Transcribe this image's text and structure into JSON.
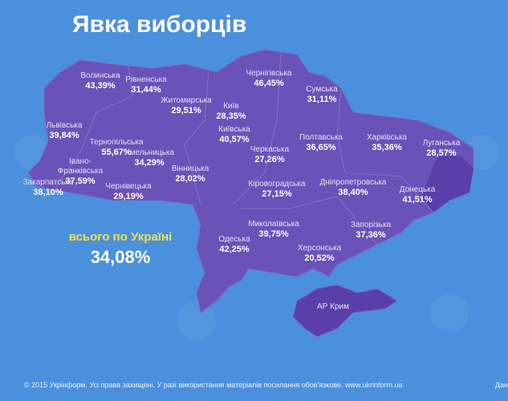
{
  "header": {
    "title": "Явка виборців"
  },
  "regions": [
    {
      "name": "Волинська",
      "turnout": "43,39%"
    },
    {
      "name": "Рівненська",
      "turnout": "31,44%"
    },
    {
      "name": "Чернігівська",
      "turnout": "46,45%"
    },
    {
      "name": "Сумська",
      "turnout": "31,11%"
    },
    {
      "name": "Житомирська",
      "turnout": "29,51%"
    },
    {
      "name": "Київ",
      "turnout": "28,35%"
    },
    {
      "name": "Львівська",
      "turnout": "39,84%"
    },
    {
      "name": "Київська",
      "turnout": "40,57%"
    },
    {
      "name": "Полтавська",
      "turnout": "36,65%"
    },
    {
      "name": "Харківська",
      "turnout": "35,36%"
    },
    {
      "name": "Тернопільська",
      "turnout": "55,67%"
    },
    {
      "name": "Хмельницька",
      "turnout": "34,29%"
    },
    {
      "name": "Черкаська",
      "turnout": "27,26%"
    },
    {
      "name": "Луганська",
      "turnout": "28,57%"
    },
    {
      "name": "Вінницька",
      "turnout": "28,02%"
    },
    {
      "name": "Івано- Франківська",
      "turnout": "37,59%"
    },
    {
      "name": "Закарпатська",
      "turnout": "38,10%"
    },
    {
      "name": "Чернівецька",
      "turnout": "29,19%"
    },
    {
      "name": "Кіровоградська",
      "turnout": "27,15%"
    },
    {
      "name": "Дніпропетровська",
      "turnout": "38,40%"
    },
    {
      "name": "Донецька",
      "turnout": "41,51%"
    },
    {
      "name": "Миколаївська",
      "turnout": "39,75%"
    },
    {
      "name": "Запорізька",
      "turnout": "37,36%"
    },
    {
      "name": "Одеська",
      "turnout": "42,25%"
    },
    {
      "name": "Херсонська",
      "turnout": "20,52%"
    },
    {
      "name": "АР Крим"
    }
  ],
  "total": {
    "label": "всього по Україні",
    "value": "34,08%"
  },
  "footer": {
    "text": "© 2015 Укрінформ. Усі права захищені. У разі використання матеріалів посилання обов'язкове. www.ukrinform.ua",
    "cut": "Дан"
  }
}
